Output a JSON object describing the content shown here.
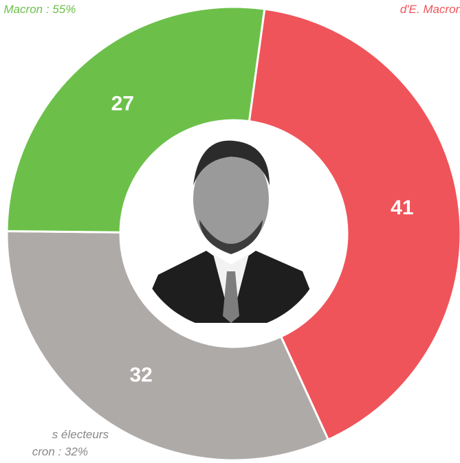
{
  "chart_data": {
    "type": "donut",
    "values": [
      41,
      32,
      27
    ],
    "colors": [
      "#ef545a",
      "#aeaaa8",
      "#6cc04a"
    ],
    "annotations": [
      {
        "text": ". Macron : 55%",
        "color": "#6cc04a"
      },
      {
        "text": "d'E. Macron",
        "color": "#ef545a"
      },
      {
        "text": "s électeurs",
        "color": "#8a8786"
      },
      {
        "text": "cron : 32%",
        "color": "#8a8786"
      }
    ]
  }
}
